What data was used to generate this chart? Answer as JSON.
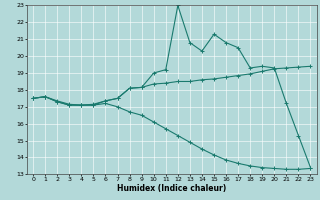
{
  "xlabel": "Humidex (Indice chaleur)",
  "xlim": [
    -0.5,
    23.5
  ],
  "ylim": [
    13,
    23
  ],
  "xticks": [
    0,
    1,
    2,
    3,
    4,
    5,
    6,
    7,
    8,
    9,
    10,
    11,
    12,
    13,
    14,
    15,
    16,
    17,
    18,
    19,
    20,
    21,
    22,
    23
  ],
  "yticks": [
    13,
    14,
    15,
    16,
    17,
    18,
    19,
    20,
    21,
    22,
    23
  ],
  "bg_color": "#b3d9d9",
  "grid_color": "#ffffff",
  "line_color": "#1a7a6e",
  "line1_x": [
    0,
    1,
    2,
    3,
    4,
    5,
    6,
    7,
    8,
    9,
    10,
    11,
    12,
    13,
    14,
    15,
    16,
    17,
    18,
    19,
    20,
    21,
    22,
    23
  ],
  "line1_y": [
    17.5,
    17.6,
    17.3,
    17.1,
    17.1,
    17.1,
    17.35,
    17.5,
    18.1,
    18.15,
    19.0,
    19.2,
    23.0,
    20.8,
    20.3,
    21.3,
    20.8,
    20.5,
    19.3,
    19.4,
    19.3,
    17.2,
    15.3,
    13.4
  ],
  "line2_x": [
    0,
    1,
    2,
    3,
    4,
    5,
    6,
    7,
    8,
    9,
    10,
    11,
    12,
    13,
    14,
    15,
    16,
    17,
    18,
    19,
    20,
    21,
    22,
    23
  ],
  "line2_y": [
    17.5,
    17.6,
    17.35,
    17.15,
    17.1,
    17.15,
    17.35,
    17.5,
    18.1,
    18.15,
    18.35,
    18.4,
    18.5,
    18.5,
    18.6,
    18.65,
    18.75,
    18.85,
    18.95,
    19.1,
    19.25,
    19.3,
    19.35,
    19.4
  ],
  "line3_x": [
    0,
    1,
    2,
    3,
    4,
    5,
    6,
    7,
    8,
    9,
    10,
    11,
    12,
    13,
    14,
    15,
    16,
    17,
    18,
    19,
    20,
    21,
    22,
    23
  ],
  "line3_y": [
    17.5,
    17.6,
    17.3,
    17.1,
    17.1,
    17.1,
    17.2,
    17.0,
    16.7,
    16.5,
    16.1,
    15.7,
    15.3,
    14.9,
    14.5,
    14.15,
    13.85,
    13.65,
    13.5,
    13.4,
    13.35,
    13.3,
    13.3,
    13.35
  ],
  "marker_size": 2.0,
  "line_width": 0.8,
  "xlabel_fontsize": 5.5,
  "tick_fontsize": 4.5
}
